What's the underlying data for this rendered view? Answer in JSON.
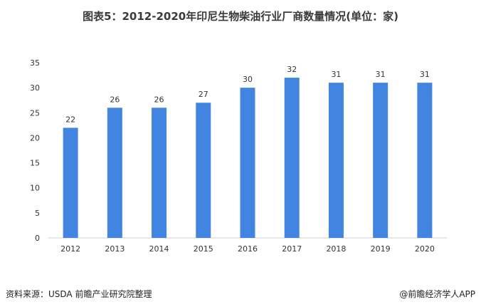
{
  "title": "图表5：2012-2020年印尼生物柴油行业厂商数量情况(单位：家)",
  "source": "资料来源：USDA 前瞻产业研究院整理",
  "brand": "@前瞻经济学人APP",
  "colors": {
    "bar": "#4285e0",
    "axis": "#d0d0d0",
    "text": "#333333"
  },
  "chart_data": {
    "type": "bar",
    "categories": [
      "2012",
      "2013",
      "2014",
      "2015",
      "2016",
      "2017",
      "2018",
      "2019",
      "2020"
    ],
    "values": [
      22,
      26,
      26,
      27,
      30,
      32,
      31,
      31,
      31
    ],
    "ylim": [
      0,
      35
    ],
    "yticks": [
      0,
      5,
      10,
      15,
      20,
      25,
      30,
      35
    ],
    "grid": false
  }
}
